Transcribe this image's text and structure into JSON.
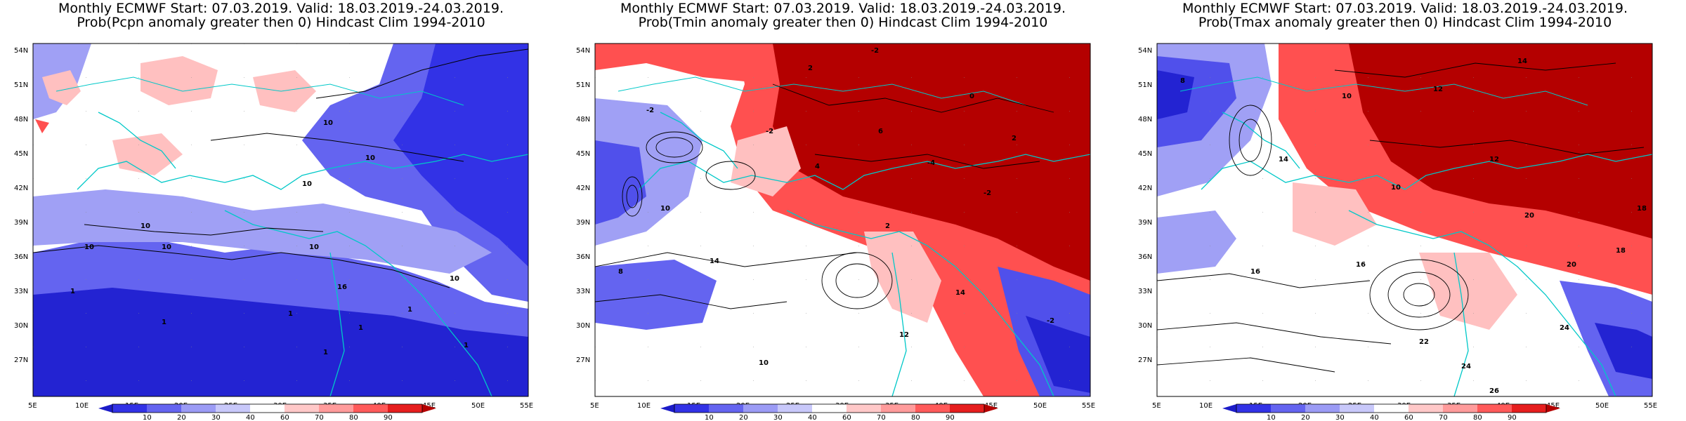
{
  "panels": [
    {
      "id": "pcpn",
      "title_line1": "Monthly ECMWF Start: 07.03.2019. Valid: 18.03.2019.-24.03.2019.",
      "title_line2": "Prob(Pcpn anomaly greater then 0) Hindcast Clim 1994-2010",
      "contour_labels": [
        "10",
        "10",
        "10",
        "10",
        "10",
        "10",
        "10",
        "10",
        "1",
        "1",
        "1",
        "1",
        "1",
        "1",
        "1",
        "16"
      ]
    },
    {
      "id": "tmin",
      "title_line1": "Monthly ECMWF Start: 07.03.2019. Valid: 18.03.2019.-24.03.2019.",
      "title_line2": "Prob(Tmin anomaly greater then 0) Hindcast Clim 1994-2010",
      "contour_labels": [
        "-2",
        "2",
        "-2",
        "4",
        "-2",
        "6",
        "-4",
        "-2",
        "2",
        "10",
        "14",
        "8",
        "12",
        "10",
        "14",
        "-2",
        "0",
        "2"
      ]
    },
    {
      "id": "tmax",
      "title_line1": "Monthly ECMWF Start: 07.03.2019. Valid: 18.03.2019.-24.03.2019.",
      "title_line2": "Prob(Tmax anomaly greater then 0) Hindcast Clim 1994-2010",
      "contour_labels": [
        "8",
        "10",
        "12",
        "14",
        "16",
        "18",
        "20",
        "22",
        "24",
        "10",
        "12",
        "14",
        "16",
        "20",
        "24",
        "26",
        "18"
      ]
    }
  ],
  "lat_labels": [
    "54N",
    "51N",
    "48N",
    "45N",
    "42N",
    "39N",
    "36N",
    "33N",
    "30N",
    "27N"
  ],
  "lon_labels": [
    "5E",
    "10E",
    "15E",
    "20E",
    "25E",
    "30E",
    "35E",
    "40E",
    "45E",
    "50E",
    "55E"
  ],
  "colorbar": {
    "ticks": [
      "10",
      "20",
      "30",
      "40",
      "60",
      "70",
      "80",
      "90"
    ],
    "colors": [
      "#1c1cc8",
      "#3232e6",
      "#6464f0",
      "#9b9bf5",
      "#c8c8fa",
      "#ffffff",
      "#ffc8c8",
      "#ff9b9b",
      "#ff5a5a",
      "#e61e1e",
      "#b40000"
    ]
  },
  "palette": {
    "blue_deep": "#2323d2",
    "blue": "#5050eb",
    "blue_light": "#a0a0f5",
    "white": "#ffffff",
    "pink": "#ffc0c0",
    "red": "#ff5050",
    "red_dark": "#b40000",
    "coast": "#00c8c8",
    "contour": "#000000"
  }
}
